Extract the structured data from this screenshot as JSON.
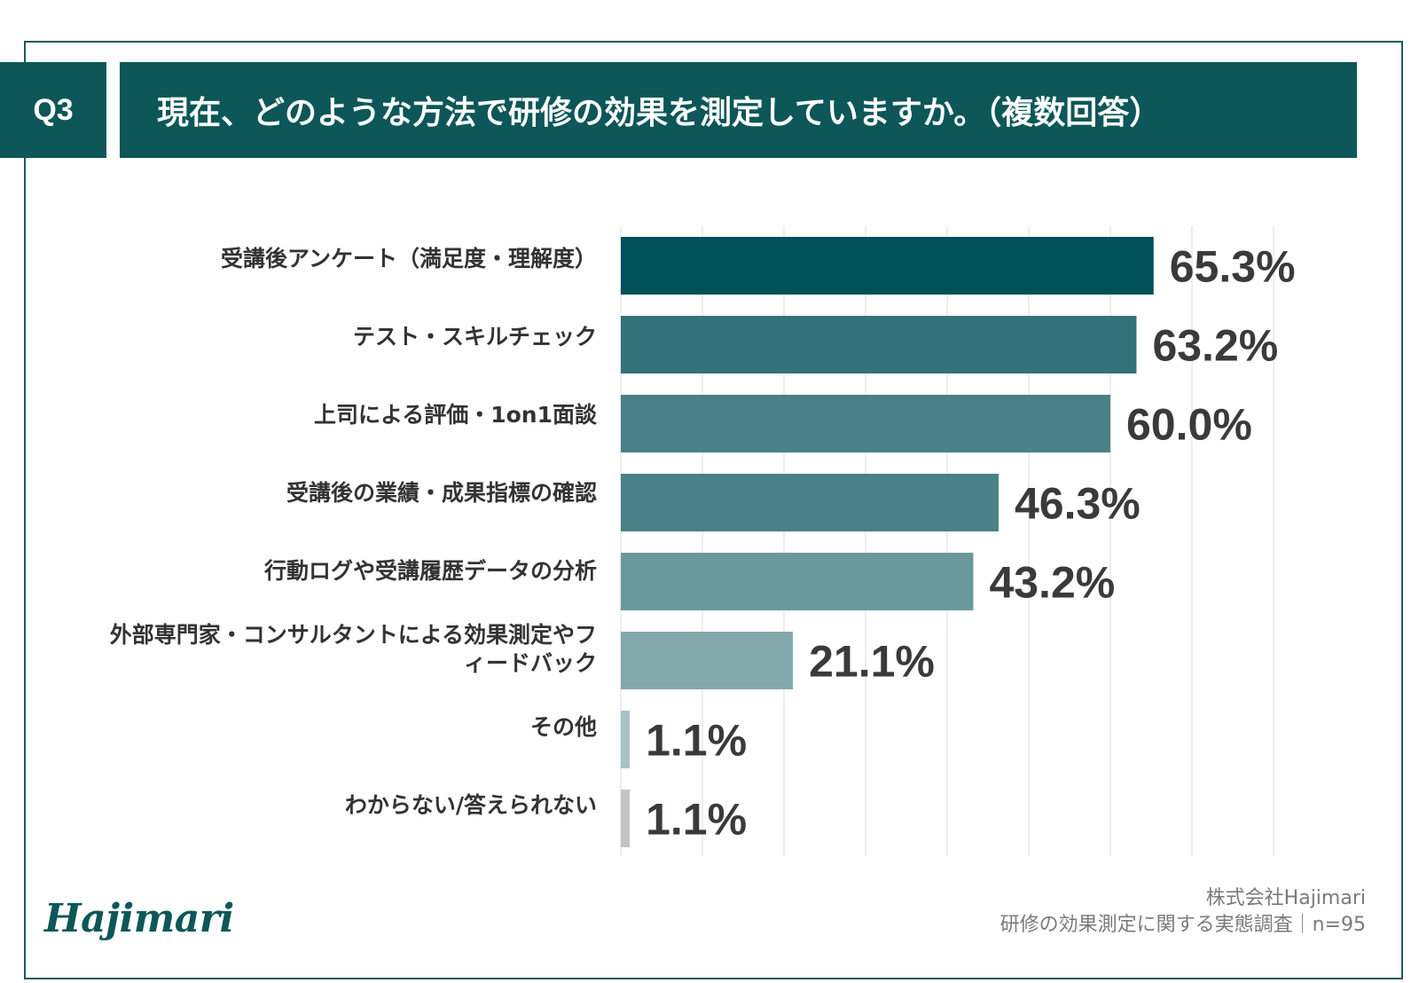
{
  "header": {
    "badge": "Q3",
    "title": "現在、どのような方法で研修の効果を測定していますか。（複数回答）"
  },
  "chart_data": {
    "type": "bar",
    "orientation": "horizontal",
    "title": "現在、どのような方法で研修の効果を測定していますか。（複数回答）",
    "categories": [
      "受講後アンケート（満足度・理解度）",
      "テスト・スキルチェック",
      "上司による評価・1on1面談",
      "受講後の業績・成果指標の確認",
      "行動ログや受講履歴データの分析",
      "外部専門家・コンサルタントによる効果測定やフィードバック",
      "その他",
      "わからない/答えられない"
    ],
    "values": [
      65.3,
      63.2,
      60.0,
      46.3,
      43.2,
      21.1,
      1.1,
      1.1
    ],
    "value_labels": [
      "65.3%",
      "63.2%",
      "60.0%",
      "46.3%",
      "43.2%",
      "21.1%",
      "1.1%",
      "1.1%"
    ],
    "unit": "%",
    "xlim": [
      0,
      80
    ],
    "grid": true,
    "colors": [
      "#00505a",
      "#33727b",
      "#4a8087",
      "#4a8087",
      "#6a989d",
      "#84a9ad",
      "#a6c2c4",
      "#c4c4c4"
    ]
  },
  "footer": {
    "company": "株式会社Hajimari",
    "survey": "研修の効果測定に関する実態調査｜n=95",
    "logo": "Hajimari"
  }
}
